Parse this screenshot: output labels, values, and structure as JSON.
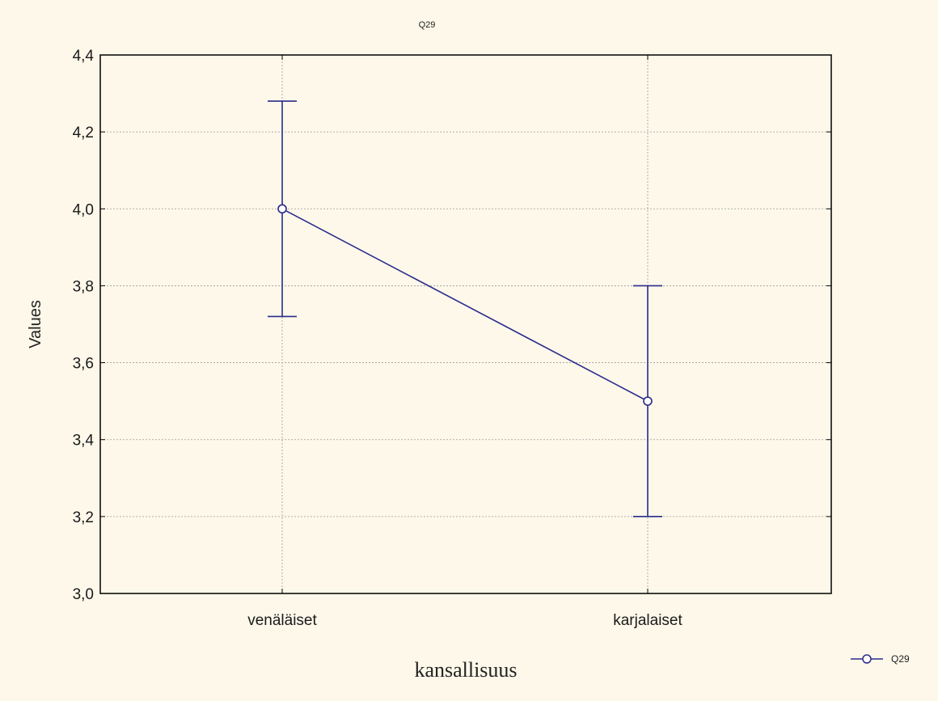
{
  "chart_data": {
    "type": "line",
    "title": "Q29",
    "xlabel": "kansallisuus",
    "ylabel": "Values",
    "categories": [
      "venäläiset",
      "karjalaiset"
    ],
    "series": [
      {
        "name": "Q29",
        "color": "#2b2b8c",
        "values": [
          4.0,
          3.5
        ],
        "upper": [
          4.28,
          3.8
        ],
        "lower": [
          3.72,
          3.2
        ]
      }
    ],
    "ylim": [
      3.0,
      4.4
    ],
    "yticks": [
      3.0,
      3.2,
      3.4,
      3.6,
      3.8,
      4.0,
      4.2,
      4.4
    ],
    "ytick_labels": [
      "3,0",
      "3,2",
      "3,4",
      "3,6",
      "3,8",
      "4,0",
      "4,2",
      "4,4"
    ],
    "grid": true,
    "legend": "bottom-right"
  }
}
